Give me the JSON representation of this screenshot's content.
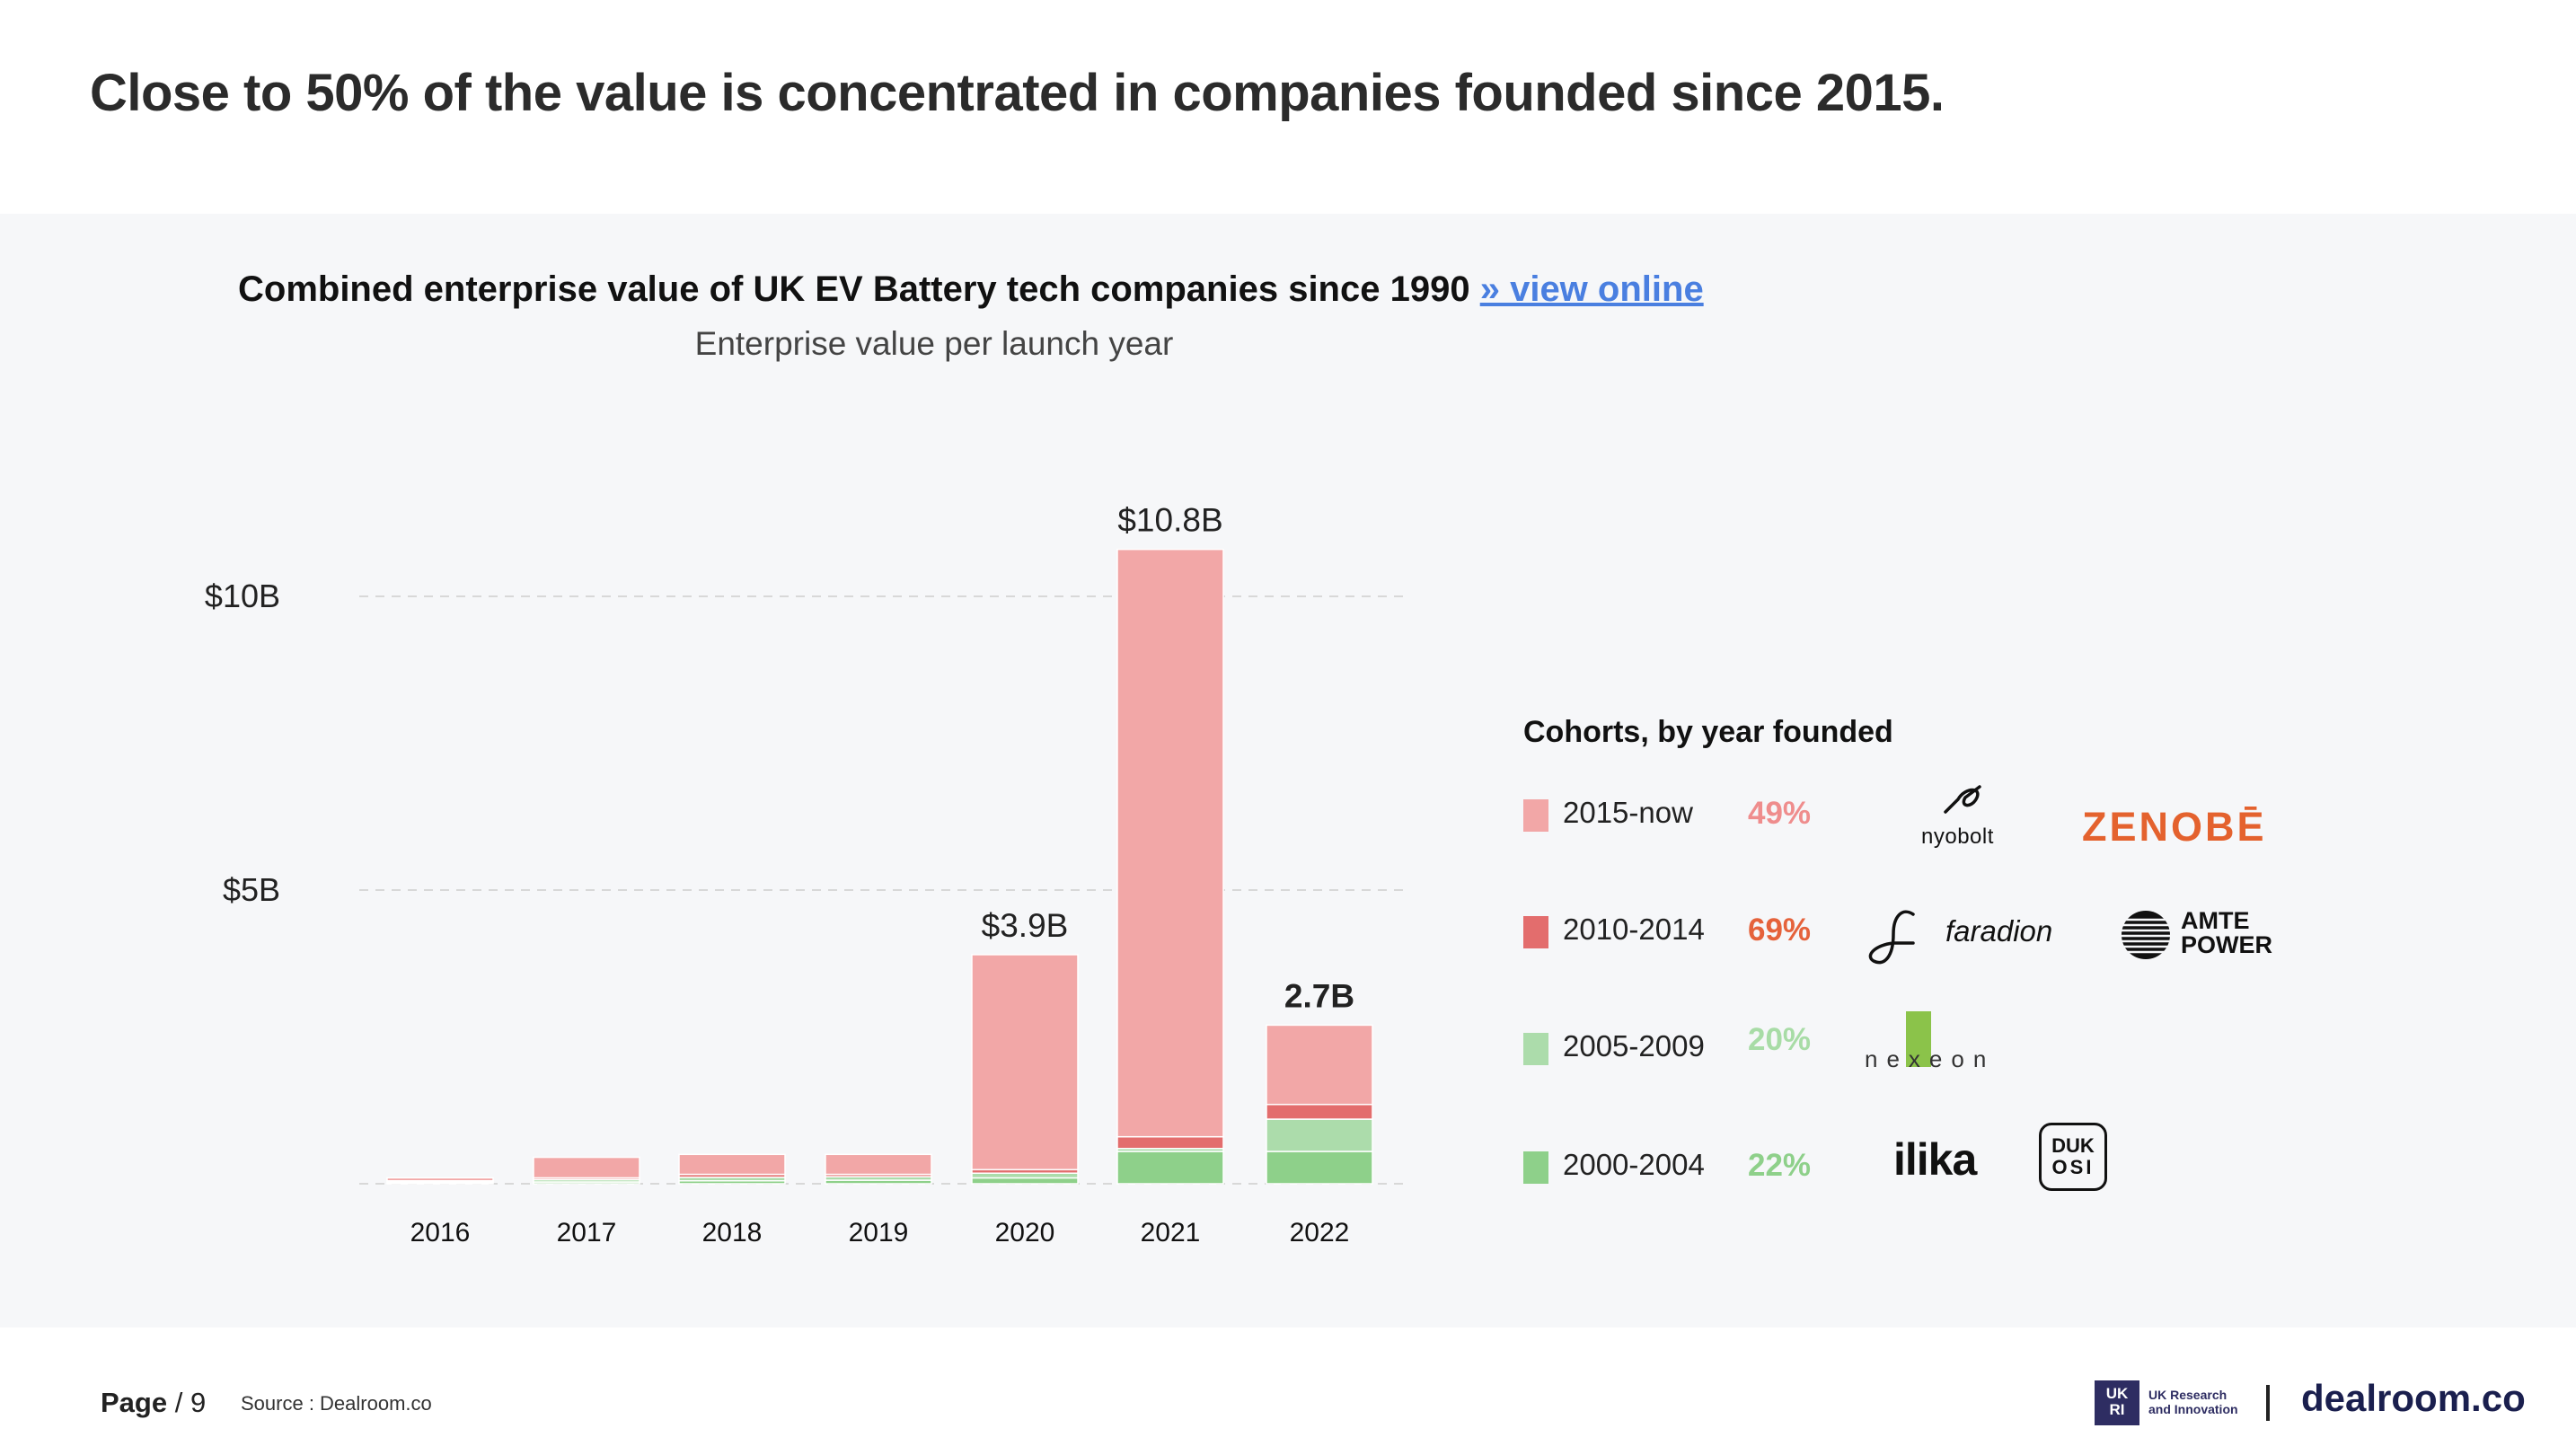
{
  "headline": "Close to 50% of the value is concentrated in companies founded since 2015.",
  "chart_header": {
    "title": "Combined enterprise value of UK EV Battery tech companies since 1990",
    "link_label": "» view online",
    "subtitle": "Enterprise value per launch year"
  },
  "colors": {
    "c2015_now": "#f2a7a7",
    "c2010_2014": "#e36d6d",
    "c2005_2009": "#acdcab",
    "c2000_2004": "#8ed08a",
    "link": "#4a7fe0",
    "grid": "#d0d0d0"
  },
  "chart_data": {
    "type": "bar",
    "stacked": true,
    "title": "Combined enterprise value of UK EV Battery tech companies since 1990",
    "subtitle": "Enterprise value per launch year",
    "categories": [
      "2016",
      "2017",
      "2018",
      "2019",
      "2020",
      "2021",
      "2022"
    ],
    "unit": "$B",
    "ylim": [
      0,
      11
    ],
    "yticks": [
      {
        "value": 5,
        "label": "$5B"
      },
      {
        "value": 10,
        "label": "$10B"
      }
    ],
    "grid": true,
    "series": [
      {
        "name": "2000-2004",
        "color": "#8ed08a",
        "values": [
          0.02,
          0.03,
          0.05,
          0.06,
          0.1,
          0.55,
          0.55
        ]
      },
      {
        "name": "2005-2009",
        "color": "#acdcab",
        "values": [
          0.02,
          0.04,
          0.06,
          0.06,
          0.08,
          0.05,
          0.55
        ]
      },
      {
        "name": "2010-2014",
        "color": "#e36d6d",
        "values": [
          0.01,
          0.03,
          0.05,
          0.04,
          0.06,
          0.2,
          0.25
        ]
      },
      {
        "name": "2015-now",
        "color": "#f2a7a7",
        "values": [
          0.05,
          0.35,
          0.34,
          0.34,
          3.66,
          10.0,
          1.35
        ]
      }
    ],
    "bar_labels": [
      {
        "category": "2020",
        "text": "$3.9B",
        "bold": false
      },
      {
        "category": "2021",
        "text": "$10.8B",
        "bold": false
      },
      {
        "category": "2022",
        "text": "2.7B",
        "bold": true
      }
    ],
    "legend": {
      "title": "Cohorts, by year founded",
      "placement": "right",
      "entries": [
        {
          "name": "2015-now",
          "share": "49%",
          "color": "#f2a7a7",
          "pct_color": "#ef8d8d"
        },
        {
          "name": "2010-2014",
          "share": "69%",
          "color": "#e36d6d",
          "pct_color": "#e5623b"
        },
        {
          "name": "2005-2009",
          "share": "20%",
          "color": "#acdcab",
          "pct_color": "#a8dca6"
        },
        {
          "name": "2000-2004",
          "share": "22%",
          "color": "#8ed08a",
          "pct_color": "#8ed08a"
        }
      ]
    }
  },
  "logos": {
    "nyobolt": "nyobolt",
    "zenobe": "ZENOBĒ",
    "faradion": "faradion",
    "amte_line1": "AMTE",
    "amte_line2": "POWER",
    "nexeon": "nexeon",
    "ilika": "ilika",
    "dukosi_line1": "DUK",
    "dukosi_line2": "OSI"
  },
  "footer": {
    "page_label": "Page",
    "page_sep": "/",
    "page_number": "9",
    "source": "Source : Dealroom.co",
    "ukri_mark": "UK RI",
    "ukri_line1": "UK Research",
    "ukri_line2": "and Innovation",
    "dealroom": "dealroom.co"
  }
}
